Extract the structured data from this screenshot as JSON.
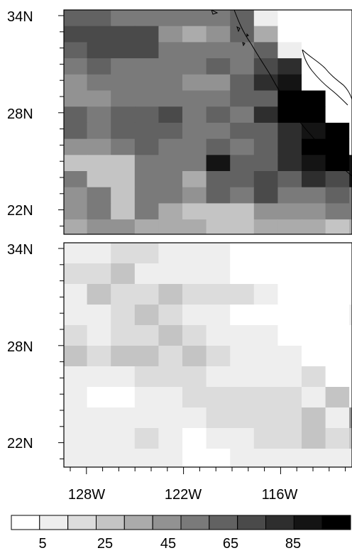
{
  "colorbar": {
    "labels": [
      "5",
      "25",
      "45",
      "65",
      "85"
    ],
    "colors": [
      "#ffffff",
      "#eeeeee",
      "#dcdcdc",
      "#c4c4c4",
      "#ababab",
      "#929292",
      "#7a7a7a",
      "#626262",
      "#4a4a4a",
      "#2e2e2e",
      "#141414",
      "#000000"
    ]
  },
  "panels": [
    {
      "lat_labels": [
        "34N",
        "28N",
        "22N"
      ],
      "grid": [
        [
          7,
          7,
          6,
          6,
          6,
          6,
          6,
          7,
          1,
          0,
          0,
          0,
          0,
          0
        ],
        [
          8,
          8,
          8,
          8,
          5,
          4,
          5,
          7,
          4,
          0,
          0,
          0,
          0,
          0
        ],
        [
          7,
          8,
          8,
          8,
          6,
          6,
          6,
          6,
          7,
          1,
          0,
          0,
          0,
          0
        ],
        [
          6,
          7,
          6,
          6,
          6,
          6,
          7,
          6,
          8,
          9,
          0,
          0,
          0,
          0
        ],
        [
          5,
          6,
          6,
          6,
          6,
          5,
          5,
          7,
          9,
          10,
          0,
          0,
          0,
          1
        ],
        [
          5,
          5,
          6,
          6,
          6,
          6,
          6,
          7,
          7,
          11,
          11,
          0,
          0,
          0
        ],
        [
          7,
          6,
          7,
          7,
          8,
          6,
          7,
          6,
          9,
          11,
          11,
          0,
          0,
          0
        ],
        [
          7,
          6,
          7,
          7,
          7,
          6,
          6,
          7,
          7,
          9,
          10,
          11,
          0,
          0
        ],
        [
          5,
          5,
          6,
          7,
          6,
          6,
          7,
          6,
          7,
          9,
          11,
          11,
          0,
          0
        ],
        [
          3,
          3,
          3,
          6,
          6,
          6,
          10,
          7,
          7,
          9,
          10,
          11,
          10,
          0
        ],
        [
          6,
          3,
          3,
          6,
          6,
          4,
          7,
          7,
          8,
          7,
          9,
          8,
          10,
          8
        ],
        [
          5,
          6,
          3,
          6,
          6,
          5,
          7,
          6,
          8,
          6,
          6,
          7,
          6,
          6
        ],
        [
          5,
          6,
          3,
          6,
          4,
          3,
          3,
          3,
          5,
          5,
          5,
          6,
          6,
          6
        ],
        [
          4,
          5,
          5,
          4,
          4,
          4,
          3,
          3,
          4,
          4,
          4,
          3,
          4,
          3
        ]
      ]
    },
    {
      "lat_labels": [
        "34N",
        "28N",
        "22N"
      ],
      "grid": [
        [
          1,
          1,
          2,
          2,
          1,
          1,
          1,
          0,
          0,
          0,
          0,
          0,
          0,
          0
        ],
        [
          2,
          2,
          3,
          1,
          1,
          1,
          1,
          0,
          0,
          0,
          0,
          0,
          0,
          0
        ],
        [
          1,
          3,
          2,
          2,
          3,
          2,
          2,
          2,
          1,
          0,
          0,
          0,
          0,
          0
        ],
        [
          1,
          1,
          2,
          3,
          2,
          1,
          1,
          0,
          0,
          0,
          0,
          0,
          1,
          0
        ],
        [
          2,
          1,
          2,
          2,
          3,
          2,
          1,
          1,
          1,
          0,
          0,
          0,
          0,
          0
        ],
        [
          3,
          2,
          3,
          3,
          2,
          3,
          2,
          1,
          1,
          1,
          0,
          0,
          0,
          0
        ],
        [
          1,
          1,
          1,
          2,
          2,
          2,
          1,
          1,
          1,
          1,
          2,
          0,
          0,
          0
        ],
        [
          1,
          0,
          0,
          1,
          1,
          2,
          2,
          2,
          2,
          2,
          1,
          3,
          0,
          0
        ],
        [
          1,
          1,
          1,
          1,
          1,
          1,
          2,
          2,
          2,
          2,
          3,
          1,
          5,
          0
        ],
        [
          1,
          1,
          1,
          2,
          1,
          0,
          1,
          1,
          2,
          2,
          3,
          2,
          3,
          0
        ],
        [
          1,
          1,
          1,
          1,
          1,
          0,
          0,
          1,
          1,
          1,
          1,
          1,
          1,
          0
        ]
      ]
    }
  ],
  "lon_labels": [
    "128W",
    "122W",
    "116W"
  ]
}
